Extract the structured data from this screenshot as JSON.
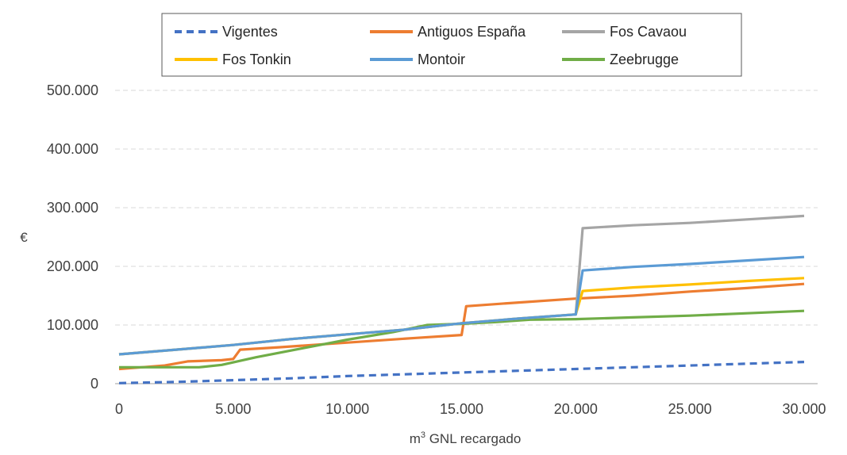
{
  "chart_data": {
    "type": "line",
    "title": "",
    "xlabel_prefix": "m",
    "xlabel_sup": "3",
    "xlabel_suffix": " GNL recargado",
    "ylabel": "€",
    "xlim": [
      0,
      30000
    ],
    "ylim": [
      0,
      500000
    ],
    "x_ticks": [
      0,
      5000,
      10000,
      15000,
      20000,
      25000,
      30000
    ],
    "x_tick_labels": [
      "0",
      "5.000",
      "10.000",
      "15.000",
      "20.000",
      "25.000",
      "30.000"
    ],
    "y_ticks": [
      0,
      100000,
      200000,
      300000,
      400000,
      500000
    ],
    "y_tick_labels": [
      "0",
      "100.000",
      "200.000",
      "300.000",
      "400.000",
      "500.000"
    ],
    "grid": "horizontal-dashed",
    "legend_position": "top",
    "series": [
      {
        "name": "Vigentes",
        "color": "#4472C4",
        "dash": true,
        "points": [
          [
            0,
            1000
          ],
          [
            2500,
            3000
          ],
          [
            5000,
            6000
          ],
          [
            7500,
            9000
          ],
          [
            10000,
            13000
          ],
          [
            12500,
            16000
          ],
          [
            15000,
            19000
          ],
          [
            17500,
            22000
          ],
          [
            20000,
            25000
          ],
          [
            22500,
            28000
          ],
          [
            25000,
            31000
          ],
          [
            27500,
            34000
          ],
          [
            30000,
            37000
          ]
        ]
      },
      {
        "name": "Antiguos España",
        "color": "#ED7D31",
        "dash": false,
        "points": [
          [
            0,
            25000
          ],
          [
            1000,
            28000
          ],
          [
            2000,
            31000
          ],
          [
            3000,
            38000
          ],
          [
            4500,
            40000
          ],
          [
            5000,
            42000
          ],
          [
            5300,
            58000
          ],
          [
            7000,
            62000
          ],
          [
            10000,
            70000
          ],
          [
            13000,
            78000
          ],
          [
            15000,
            83000
          ],
          [
            15200,
            132000
          ],
          [
            17000,
            137000
          ],
          [
            20000,
            145000
          ],
          [
            22500,
            150000
          ],
          [
            25000,
            157000
          ],
          [
            27500,
            163000
          ],
          [
            30000,
            170000
          ]
        ]
      },
      {
        "name": "Fos Cavaou",
        "color": "#A5A5A5",
        "dash": false,
        "points": [
          [
            0,
            50000
          ],
          [
            2500,
            58000
          ],
          [
            5000,
            66000
          ],
          [
            7500,
            76000
          ],
          [
            10000,
            84000
          ],
          [
            12500,
            92000
          ],
          [
            15000,
            103000
          ],
          [
            17500,
            111000
          ],
          [
            20000,
            118000
          ],
          [
            20300,
            265000
          ],
          [
            22500,
            270000
          ],
          [
            25000,
            274000
          ],
          [
            27500,
            280000
          ],
          [
            30000,
            286000
          ]
        ]
      },
      {
        "name": "Fos Tonkin",
        "color": "#FFC000",
        "dash": false,
        "points": [
          [
            0,
            50000
          ],
          [
            2500,
            58000
          ],
          [
            5000,
            66000
          ],
          [
            7500,
            76000
          ],
          [
            10000,
            84000
          ],
          [
            12500,
            92000
          ],
          [
            15000,
            103000
          ],
          [
            17500,
            111000
          ],
          [
            20000,
            118000
          ],
          [
            20300,
            158000
          ],
          [
            22500,
            164000
          ],
          [
            25000,
            169000
          ],
          [
            27500,
            175000
          ],
          [
            30000,
            180000
          ]
        ]
      },
      {
        "name": "Montoir",
        "color": "#5B9BD5",
        "dash": false,
        "points": [
          [
            0,
            50000
          ],
          [
            2500,
            58000
          ],
          [
            5000,
            66000
          ],
          [
            7500,
            76000
          ],
          [
            10000,
            84000
          ],
          [
            12500,
            92000
          ],
          [
            15000,
            103000
          ],
          [
            17500,
            111000
          ],
          [
            20000,
            118000
          ],
          [
            20300,
            193000
          ],
          [
            22500,
            199000
          ],
          [
            25000,
            204000
          ],
          [
            27500,
            210000
          ],
          [
            30000,
            216000
          ]
        ]
      },
      {
        "name": "Zeebrugge",
        "color": "#70AD47",
        "dash": false,
        "points": [
          [
            0,
            28000
          ],
          [
            3500,
            28000
          ],
          [
            4500,
            32000
          ],
          [
            6000,
            45000
          ],
          [
            8000,
            60000
          ],
          [
            10000,
            75000
          ],
          [
            12000,
            88000
          ],
          [
            13500,
            100000
          ],
          [
            15000,
            102000
          ],
          [
            16500,
            105000
          ],
          [
            18000,
            109000
          ],
          [
            20000,
            110000
          ],
          [
            22500,
            113000
          ],
          [
            25000,
            116000
          ],
          [
            27500,
            120000
          ],
          [
            30000,
            124000
          ]
        ]
      }
    ]
  }
}
